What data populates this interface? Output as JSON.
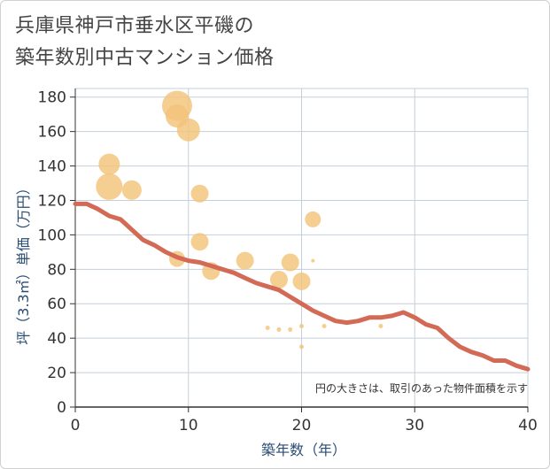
{
  "title_line1": "兵庫県神戸市垂水区平磯の",
  "title_line2": "築年数別中古マンション価格",
  "chart_data": {
    "type": "scatter",
    "title": "兵庫県神戸市垂水区平磯の築年数別中古マンション価格",
    "xlabel": "築年数（年）",
    "ylabel": "坪（3.3㎡）単価（万円）",
    "xlim": [
      0,
      40
    ],
    "ylim": [
      0,
      185
    ],
    "xticks": [
      0,
      10,
      20,
      30,
      40
    ],
    "yticks": [
      0,
      20,
      40,
      60,
      80,
      100,
      120,
      140,
      160,
      180
    ],
    "grid": true,
    "note": "円の大きさは、取引のあった物件面積を示す",
    "colors": {
      "bubble": "#f3c37a",
      "trend": "#d26a55",
      "grid": "#c5cfda",
      "axis_label": "#2a4d74"
    },
    "scatter": [
      {
        "x": 3,
        "y": 141,
        "size": 12
      },
      {
        "x": 3,
        "y": 128,
        "size": 15
      },
      {
        "x": 5,
        "y": 126,
        "size": 11
      },
      {
        "x": 9,
        "y": 175,
        "size": 17
      },
      {
        "x": 9,
        "y": 169,
        "size": 13
      },
      {
        "x": 10,
        "y": 161,
        "size": 13
      },
      {
        "x": 11,
        "y": 124,
        "size": 10
      },
      {
        "x": 11,
        "y": 96,
        "size": 10
      },
      {
        "x": 9,
        "y": 86,
        "size": 9
      },
      {
        "x": 12,
        "y": 79,
        "size": 10
      },
      {
        "x": 15,
        "y": 85,
        "size": 10
      },
      {
        "x": 18,
        "y": 74,
        "size": 10
      },
      {
        "x": 19,
        "y": 84,
        "size": 10
      },
      {
        "x": 20,
        "y": 73,
        "size": 10
      },
      {
        "x": 21,
        "y": 109,
        "size": 9
      },
      {
        "x": 21,
        "y": 85,
        "size": 2
      },
      {
        "x": 17,
        "y": 46,
        "size": 2.5
      },
      {
        "x": 18,
        "y": 45,
        "size": 2.5
      },
      {
        "x": 19,
        "y": 45,
        "size": 2.5
      },
      {
        "x": 20,
        "y": 47,
        "size": 2.5
      },
      {
        "x": 20,
        "y": 35,
        "size": 2.5
      },
      {
        "x": 22,
        "y": 47,
        "size": 2.5
      },
      {
        "x": 27,
        "y": 47,
        "size": 2.5
      }
    ],
    "trend": {
      "x": [
        0,
        1,
        2,
        3,
        4,
        5,
        6,
        7,
        8,
        9,
        10,
        11,
        12,
        13,
        14,
        15,
        16,
        17,
        18,
        19,
        20,
        21,
        22,
        23,
        24,
        25,
        26,
        27,
        28,
        29,
        30,
        31,
        32,
        33,
        34,
        35,
        36,
        37,
        38,
        39,
        40
      ],
      "y": [
        118,
        118,
        115,
        111,
        109,
        103,
        97,
        94,
        90,
        87,
        85,
        84,
        82,
        80,
        78,
        75,
        72,
        70,
        68,
        64,
        60,
        56,
        53,
        50,
        49,
        50,
        52,
        52,
        53,
        55,
        52,
        48,
        46,
        40,
        35,
        32,
        30,
        27,
        27,
        24,
        22
      ]
    }
  }
}
